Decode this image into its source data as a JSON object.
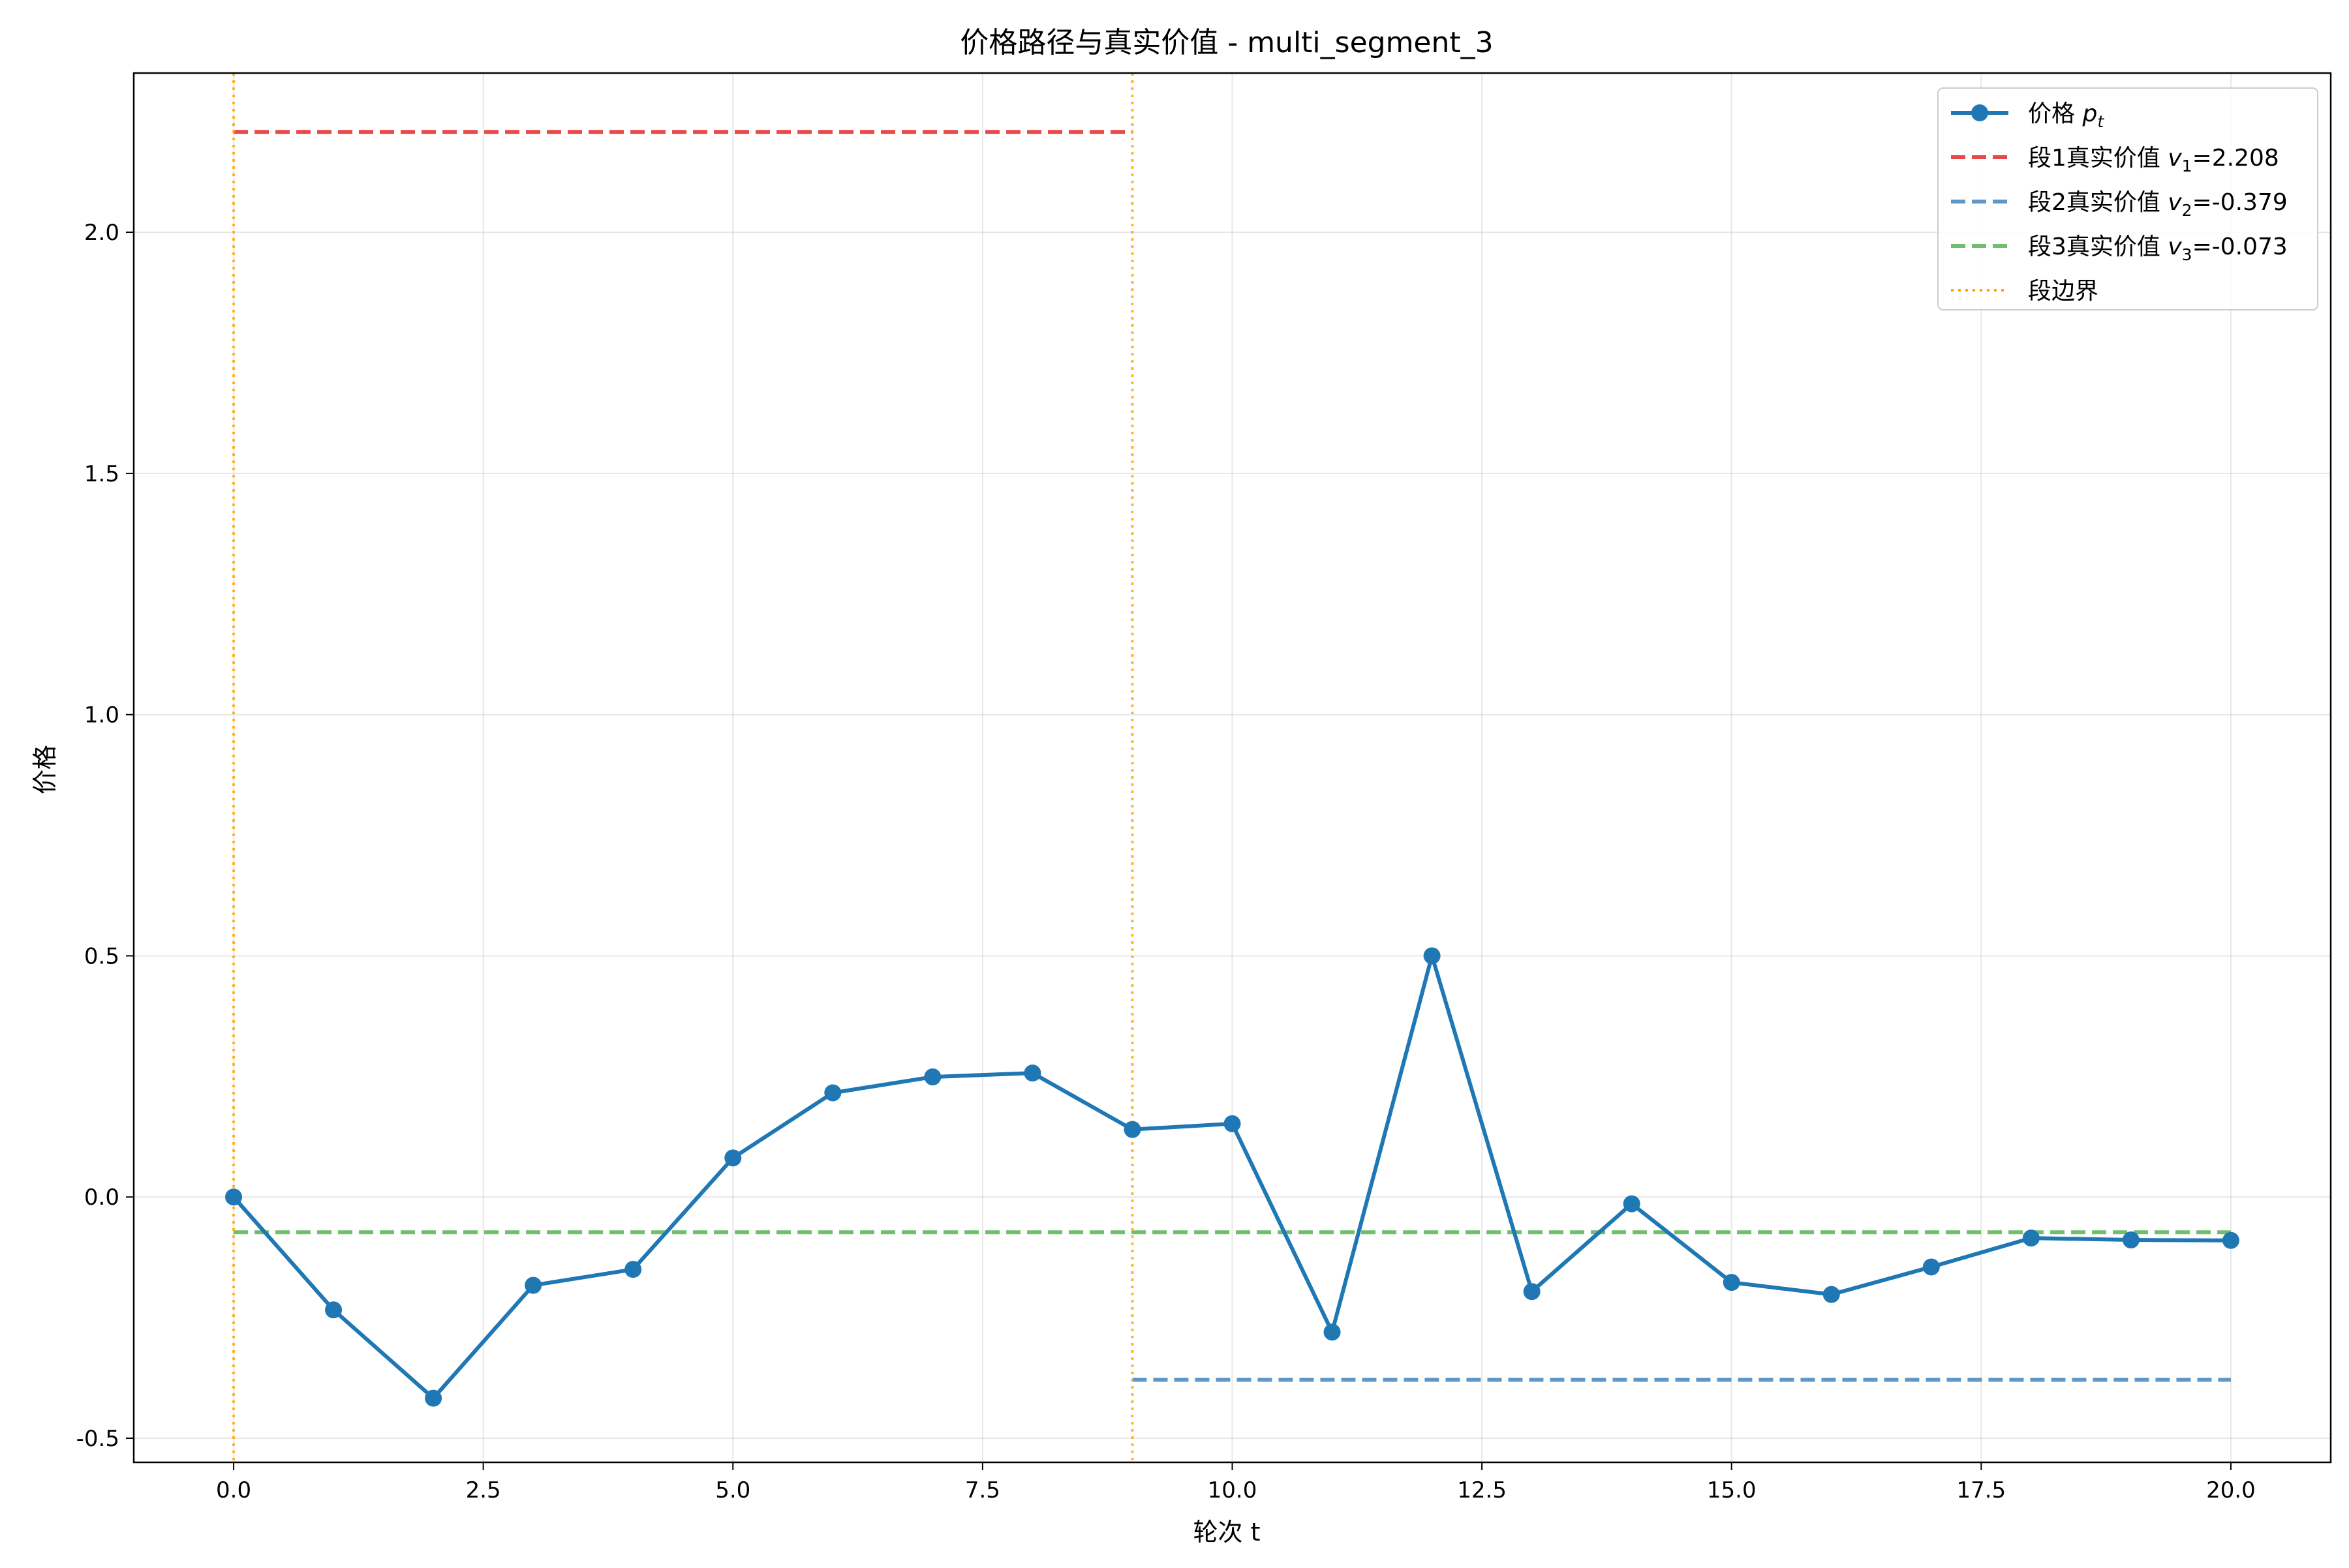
{
  "chart_data": {
    "type": "line",
    "title": "价格路径与真实价值 - multi_segment_3",
    "xlabel": "轮次 t",
    "ylabel": "价格",
    "xlim": [
      -1,
      21
    ],
    "ylim": [
      -0.55,
      2.33
    ],
    "xticks": [
      0,
      2.5,
      5,
      7.5,
      10,
      12.5,
      15,
      17.5,
      20
    ],
    "xtick_labels": [
      "0.0",
      "2.5",
      "5.0",
      "7.5",
      "10.0",
      "12.5",
      "15.0",
      "17.5",
      "20.0"
    ],
    "yticks": [
      -0.5,
      0,
      0.5,
      1,
      1.5,
      2
    ],
    "ytick_labels": [
      "-0.5",
      "0.0",
      "0.5",
      "1.0",
      "1.5",
      "2.0"
    ],
    "grid": true,
    "legend_position": "top-right",
    "price_series": {
      "legend": "价格 p_t",
      "color": "#1f77b4",
      "x": [
        0,
        1,
        2,
        3,
        4,
        5,
        6,
        7,
        8,
        9,
        10,
        11,
        12,
        13,
        14,
        15,
        16,
        17,
        18,
        19,
        20
      ],
      "y": [
        0.0,
        -0.234,
        -0.417,
        -0.183,
        -0.15,
        0.081,
        0.216,
        0.249,
        0.257,
        0.14,
        0.152,
        -0.28,
        0.5,
        -0.196,
        -0.014,
        -0.177,
        -0.202,
        -0.145,
        -0.085,
        -0.089,
        -0.09
      ]
    },
    "true_value_lines": [
      {
        "legend": "段1真实价值 v_1=2.208",
        "value": 2.208,
        "x_start": 0,
        "x_end": 9,
        "color": "#e41a1c"
      },
      {
        "legend": "段2真实价值 v_2=-0.379",
        "value": -0.379,
        "x_start": 9,
        "x_end": 20,
        "color": "#377eb8"
      },
      {
        "legend": "段3真实价值 v_3=-0.073",
        "value": -0.073,
        "x_start": 0,
        "x_end": 20,
        "color": "#4daf4a"
      }
    ],
    "segment_boundaries": {
      "legend": "段边界",
      "x": [
        0,
        9
      ],
      "color": "#ffa500"
    },
    "legend_entries": [
      {
        "style": "line-marker",
        "color": "#1f77b4",
        "main": "价格 ",
        "var": "p",
        "sub": "t",
        "suffix": ""
      },
      {
        "style": "dashed",
        "color": "#e41a1c",
        "main": "段1真实价值 ",
        "var": "v",
        "sub": "1",
        "suffix": "=2.208"
      },
      {
        "style": "dashed",
        "color": "#377eb8",
        "main": "段2真实价值 ",
        "var": "v",
        "sub": "2",
        "suffix": "=-0.379"
      },
      {
        "style": "dashed",
        "color": "#4daf4a",
        "main": "段3真实价值 ",
        "var": "v",
        "sub": "3",
        "suffix": "=-0.073"
      },
      {
        "style": "dotted",
        "color": "#ffa500",
        "main": "段边界",
        "var": "",
        "sub": "",
        "suffix": ""
      }
    ]
  }
}
